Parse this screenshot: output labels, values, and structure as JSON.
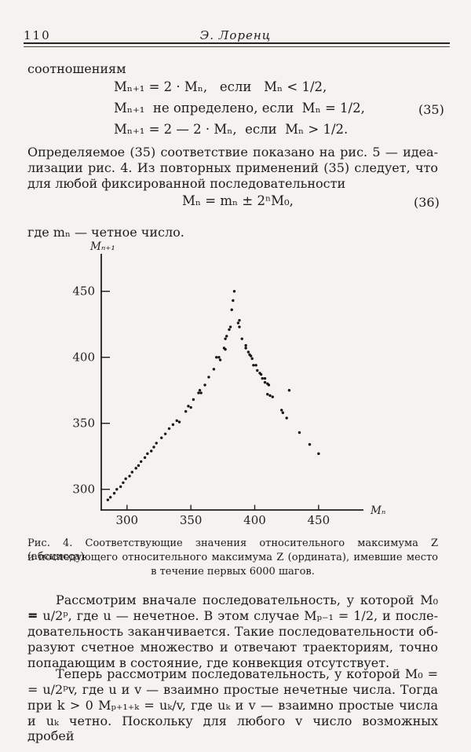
{
  "page": {
    "number": "110",
    "running_title": "Э. Лоренц"
  },
  "intro_word": "соотношениям",
  "eq35": {
    "lines": [
      "Mₙ₊₁ = 2 · Mₙ,   если   Mₙ < 1/2,",
      "Mₙ₊₁  не определено, если  Mₙ = 1/2,",
      "Mₙ₊₁ = 2 — 2 · Mₙ,  если  Mₙ > 1/2."
    ],
    "number": "(35)"
  },
  "para1": {
    "lines": [
      "Определяемое (35) соответствие показано на рис. 5 — идеа-",
      "лизации рис. 4. Из повторных применений (35) следует, что",
      "для любой фиксированной последовательности"
    ]
  },
  "eq36": {
    "formula": "Mₙ = mₙ ± 2ⁿM₀,",
    "number": "(36)"
  },
  "para2": "где mₙ — четное число.",
  "figure_caption": {
    "lines": [
      "Рис. 4. Соответствующие значения относительного максимума Z (абсцисса)",
      "и последующего относительного максимума Z (ордината), имевшие место",
      "в течение первых 6000 шагов."
    ]
  },
  "chart_data": {
    "type": "scatter",
    "title": "Рис. 4",
    "xlabel": "Mₙ",
    "ylabel": "Mₙ₊₁",
    "x_ticks": [
      300,
      350,
      400,
      450
    ],
    "y_ticks": [
      300,
      350,
      400,
      450
    ],
    "xlim": [
      280,
      485
    ],
    "ylim": [
      283,
      478
    ],
    "grid": false,
    "points": [
      [
        285,
        292
      ],
      [
        287,
        294
      ],
      [
        290,
        297
      ],
      [
        292,
        300
      ],
      [
        295,
        302
      ],
      [
        297,
        305
      ],
      [
        299,
        308
      ],
      [
        302,
        310
      ],
      [
        304,
        313
      ],
      [
        307,
        316
      ],
      [
        309,
        318
      ],
      [
        311,
        321
      ],
      [
        314,
        324
      ],
      [
        316,
        327
      ],
      [
        319,
        329
      ],
      [
        321,
        332
      ],
      [
        323,
        335
      ],
      [
        327,
        339
      ],
      [
        330,
        342
      ],
      [
        333,
        346
      ],
      [
        336,
        349
      ],
      [
        339,
        352
      ],
      [
        341,
        351
      ],
      [
        346,
        359
      ],
      [
        348,
        363
      ],
      [
        350,
        362
      ],
      [
        352,
        368
      ],
      [
        356,
        373
      ],
      [
        357,
        375
      ],
      [
        358,
        373
      ],
      [
        361,
        379
      ],
      [
        364,
        385
      ],
      [
        368,
        391
      ],
      [
        370,
        400
      ],
      [
        372,
        400
      ],
      [
        373,
        398
      ],
      [
        376,
        407
      ],
      [
        377,
        406
      ],
      [
        377,
        414
      ],
      [
        378,
        416
      ],
      [
        380,
        421
      ],
      [
        381,
        423
      ],
      [
        382,
        436
      ],
      [
        383,
        443
      ],
      [
        384,
        450
      ],
      [
        387,
        426
      ],
      [
        388,
        428
      ],
      [
        388,
        423
      ],
      [
        390,
        414
      ],
      [
        393,
        409
      ],
      [
        393,
        407
      ],
      [
        395,
        404
      ],
      [
        396,
        402
      ],
      [
        397,
        401
      ],
      [
        398,
        399
      ],
      [
        399,
        394
      ],
      [
        401,
        394
      ],
      [
        402,
        390
      ],
      [
        404,
        388
      ],
      [
        405,
        387
      ],
      [
        406,
        384
      ],
      [
        408,
        384
      ],
      [
        408,
        381
      ],
      [
        410,
        380
      ],
      [
        411,
        379
      ],
      [
        410,
        372
      ],
      [
        412,
        371
      ],
      [
        414,
        370
      ],
      [
        421,
        360
      ],
      [
        422,
        358
      ],
      [
        425,
        354
      ],
      [
        427,
        375
      ],
      [
        435,
        343
      ],
      [
        443,
        334
      ],
      [
        450,
        327
      ]
    ]
  },
  "para3": {
    "lines": [
      "Рассмотрим вначале последовательность, у которой M₀ =",
      "= u/2ᵖ, где u — нечетное. В этом случае Mₚ₋₁ = 1/2, и после-",
      "довательность заканчивается. Такие последовательности об-",
      "разуют счетное множество и отвечают траекториям, точно",
      "попадающим в состояние, где конвекция отсутствует."
    ]
  },
  "para4": {
    "lines": [
      "Теперь рассмотрим последовательность, у которой M₀ =",
      "= u/2ᵖv, где u и v — взаимно простые нечетные числа. Тогда",
      "при k > 0 Mₚ₊₁₊ₖ = uₖ/v, где uₖ и v — взаимно простые числа",
      "и uₖ четно. Поскольку для любого v число возможных дробей"
    ]
  }
}
